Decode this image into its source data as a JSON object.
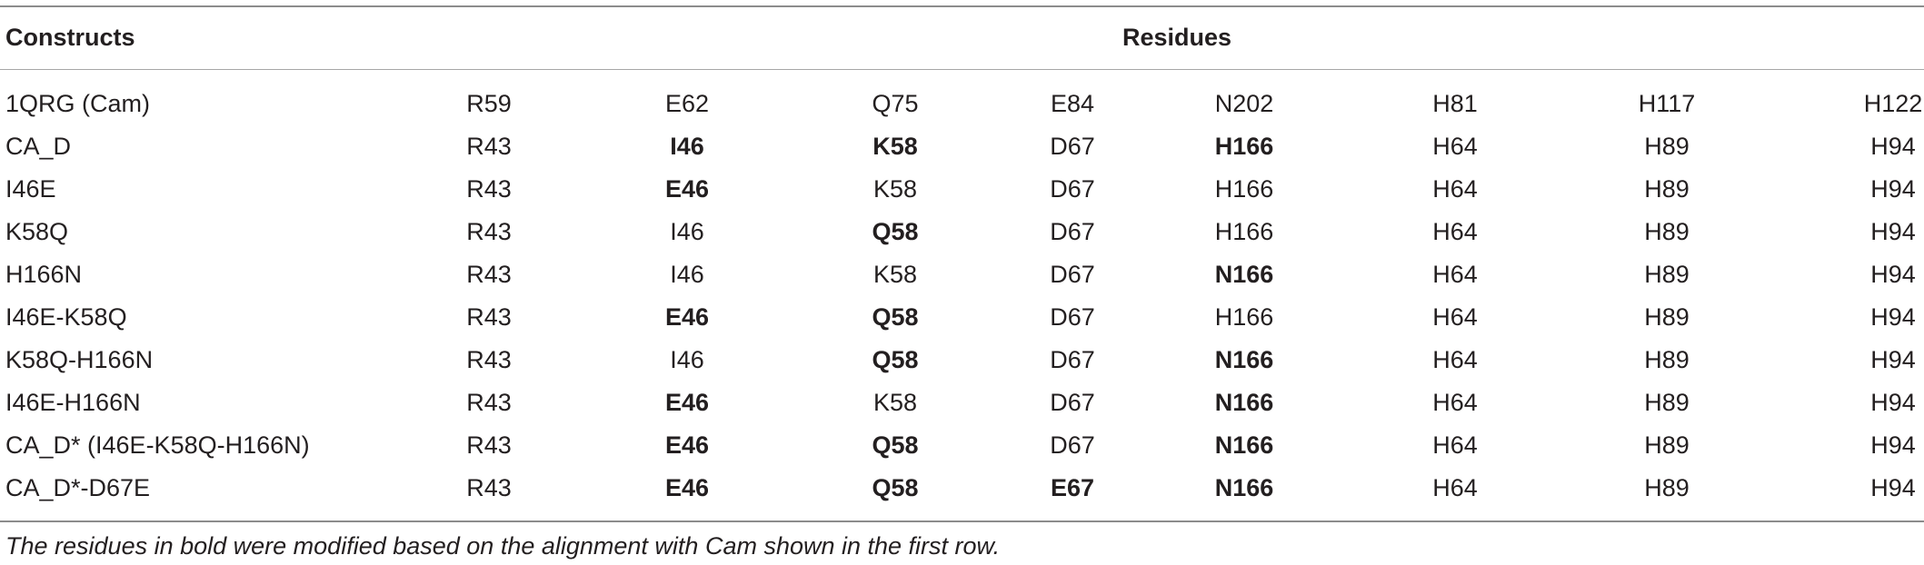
{
  "table": {
    "header": {
      "constructs": "Constructs",
      "residues": "Residues"
    },
    "rows": [
      {
        "construct": "1QRG (Cam)",
        "cells": [
          {
            "text": "R59",
            "bold": false
          },
          {
            "text": "E62",
            "bold": false
          },
          {
            "text": "Q75",
            "bold": false
          },
          {
            "text": "E84",
            "bold": false
          },
          {
            "text": "N202",
            "bold": false
          },
          {
            "text": "H81",
            "bold": false
          },
          {
            "text": "H117",
            "bold": false
          },
          {
            "text": "H122",
            "bold": false
          }
        ]
      },
      {
        "construct": "CA_D",
        "cells": [
          {
            "text": "R43",
            "bold": false
          },
          {
            "text": "I46",
            "bold": true
          },
          {
            "text": "K58",
            "bold": true
          },
          {
            "text": "D67",
            "bold": false
          },
          {
            "text": "H166",
            "bold": true
          },
          {
            "text": "H64",
            "bold": false
          },
          {
            "text": "H89",
            "bold": false
          },
          {
            "text": "H94",
            "bold": false
          }
        ]
      },
      {
        "construct": "I46E",
        "cells": [
          {
            "text": "R43",
            "bold": false
          },
          {
            "text": "E46",
            "bold": true
          },
          {
            "text": "K58",
            "bold": false
          },
          {
            "text": "D67",
            "bold": false
          },
          {
            "text": "H166",
            "bold": false
          },
          {
            "text": "H64",
            "bold": false
          },
          {
            "text": "H89",
            "bold": false
          },
          {
            "text": "H94",
            "bold": false
          }
        ]
      },
      {
        "construct": "K58Q",
        "cells": [
          {
            "text": "R43",
            "bold": false
          },
          {
            "text": "I46",
            "bold": false
          },
          {
            "text": "Q58",
            "bold": true
          },
          {
            "text": "D67",
            "bold": false
          },
          {
            "text": "H166",
            "bold": false
          },
          {
            "text": "H64",
            "bold": false
          },
          {
            "text": "H89",
            "bold": false
          },
          {
            "text": "H94",
            "bold": false
          }
        ]
      },
      {
        "construct": "H166N",
        "cells": [
          {
            "text": "R43",
            "bold": false
          },
          {
            "text": "I46",
            "bold": false
          },
          {
            "text": "K58",
            "bold": false
          },
          {
            "text": "D67",
            "bold": false
          },
          {
            "text": "N166",
            "bold": true
          },
          {
            "text": "H64",
            "bold": false
          },
          {
            "text": "H89",
            "bold": false
          },
          {
            "text": "H94",
            "bold": false
          }
        ]
      },
      {
        "construct": "I46E-K58Q",
        "cells": [
          {
            "text": "R43",
            "bold": false
          },
          {
            "text": "E46",
            "bold": true
          },
          {
            "text": "Q58",
            "bold": true
          },
          {
            "text": "D67",
            "bold": false
          },
          {
            "text": "H166",
            "bold": false
          },
          {
            "text": "H64",
            "bold": false
          },
          {
            "text": "H89",
            "bold": false
          },
          {
            "text": "H94",
            "bold": false
          }
        ]
      },
      {
        "construct": "K58Q-H166N",
        "cells": [
          {
            "text": "R43",
            "bold": false
          },
          {
            "text": "I46",
            "bold": false
          },
          {
            "text": "Q58",
            "bold": true
          },
          {
            "text": "D67",
            "bold": false
          },
          {
            "text": "N166",
            "bold": true
          },
          {
            "text": "H64",
            "bold": false
          },
          {
            "text": "H89",
            "bold": false
          },
          {
            "text": "H94",
            "bold": false
          }
        ]
      },
      {
        "construct": "I46E-H166N",
        "cells": [
          {
            "text": "R43",
            "bold": false
          },
          {
            "text": "E46",
            "bold": true
          },
          {
            "text": "K58",
            "bold": false
          },
          {
            "text": "D67",
            "bold": false
          },
          {
            "text": "N166",
            "bold": true
          },
          {
            "text": "H64",
            "bold": false
          },
          {
            "text": "H89",
            "bold": false
          },
          {
            "text": "H94",
            "bold": false
          }
        ]
      },
      {
        "construct": "CA_D* (I46E-K58Q-H166N)",
        "cells": [
          {
            "text": "R43",
            "bold": false
          },
          {
            "text": "E46",
            "bold": true
          },
          {
            "text": "Q58",
            "bold": true
          },
          {
            "text": "D67",
            "bold": false
          },
          {
            "text": "N166",
            "bold": true
          },
          {
            "text": "H64",
            "bold": false
          },
          {
            "text": "H89",
            "bold": false
          },
          {
            "text": "H94",
            "bold": false
          }
        ]
      },
      {
        "construct": "CA_D*-D67E",
        "cells": [
          {
            "text": "R43",
            "bold": false
          },
          {
            "text": "E46",
            "bold": true
          },
          {
            "text": "Q58",
            "bold": true
          },
          {
            "text": "E67",
            "bold": true
          },
          {
            "text": "N166",
            "bold": true
          },
          {
            "text": "H64",
            "bold": false
          },
          {
            "text": "H89",
            "bold": false
          },
          {
            "text": "H94",
            "bold": false
          }
        ]
      }
    ]
  },
  "footnote": "The residues in bold were modified based on the alignment with Cam shown in the first row."
}
